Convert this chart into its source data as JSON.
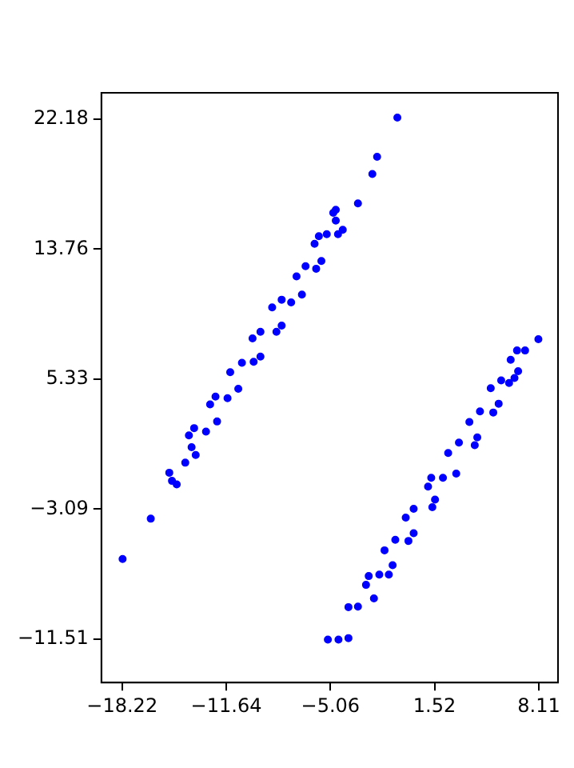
{
  "chart_data": {
    "type": "scatter",
    "marker": "circle",
    "grid": false,
    "legend": false,
    "xlim": [
      -19.53,
      9.32
    ],
    "ylim": [
      -14.33,
      23.89
    ],
    "xticks": [
      {
        "value": -18.22,
        "label": "−18.22"
      },
      {
        "value": -11.64,
        "label": "−11.64"
      },
      {
        "value": -5.06,
        "label": "−5.06"
      },
      1.52,
      8.11
    ],
    "yticks": [
      {
        "value": -11.51,
        "label": "−11.51"
      },
      {
        "value": -3.09,
        "label": "−3.09"
      },
      5.33,
      13.76,
      22.18
    ],
    "series": [
      {
        "color": "#0000ff",
        "x": [
          -18.19,
          -16.41,
          -15.24,
          -15.07,
          -14.77,
          -14.23,
          -13.57,
          -13.83,
          -14.0,
          -13.67,
          -12.92,
          -12.22,
          -12.66,
          -12.32,
          -11.56,
          -10.88,
          -11.39,
          -10.65,
          -9.91,
          -9.48,
          -9.98,
          -9.48,
          -8.47,
          -8.14,
          -8.74,
          -8.14,
          -7.54,
          -6.86,
          -7.2,
          -6.63,
          -5.96,
          -5.63,
          -6.06,
          -5.79,
          -5.29,
          -4.88,
          -4.72,
          -4.72,
          -4.58,
          -4.28,
          -3.32,
          -2.41,
          -2.11,
          -0.83,
          -5.22,
          -4.55,
          -3.92,
          -3.92,
          -3.32,
          -2.31,
          -2.81,
          -2.64,
          -1.97,
          -1.37,
          -1.13,
          -1.64,
          -0.96,
          -0.13,
          0.2,
          -0.3,
          0.2,
          1.38,
          1.55,
          1.11,
          1.31,
          2.05,
          2.89,
          2.38,
          3.06,
          4.06,
          4.22,
          3.72,
          4.39,
          5.23,
          5.57,
          5.07,
          5.73,
          6.23,
          6.57,
          6.8,
          6.33,
          6.73,
          7.24,
          8.08
        ],
        "values": [
          -6.32,
          -3.71,
          -0.73,
          -1.26,
          -1.49,
          -0.08,
          0.42,
          0.92,
          1.69,
          2.16,
          1.93,
          2.59,
          3.7,
          4.2,
          4.1,
          4.71,
          5.78,
          6.39,
          6.46,
          6.79,
          7.97,
          8.4,
          8.4,
          8.8,
          9.98,
          10.48,
          10.31,
          10.81,
          11.99,
          12.65,
          12.49,
          12.99,
          14.1,
          14.6,
          14.73,
          16.11,
          16.31,
          15.61,
          14.73,
          15.01,
          16.72,
          18.63,
          19.74,
          22.28,
          -11.55,
          -11.55,
          -11.45,
          -9.44,
          -9.41,
          -8.88,
          -8.0,
          -7.43,
          -7.33,
          -7.33,
          -6.72,
          -5.76,
          -5.08,
          -5.15,
          -4.65,
          -3.64,
          -3.07,
          -2.97,
          -2.47,
          -1.63,
          -1.06,
          -1.06,
          -0.79,
          0.55,
          1.22,
          1.05,
          1.56,
          2.56,
          3.24,
          3.17,
          3.74,
          4.75,
          5.25,
          5.08,
          5.41,
          5.85,
          6.59,
          7.19,
          7.19,
          7.92
        ]
      }
    ]
  }
}
